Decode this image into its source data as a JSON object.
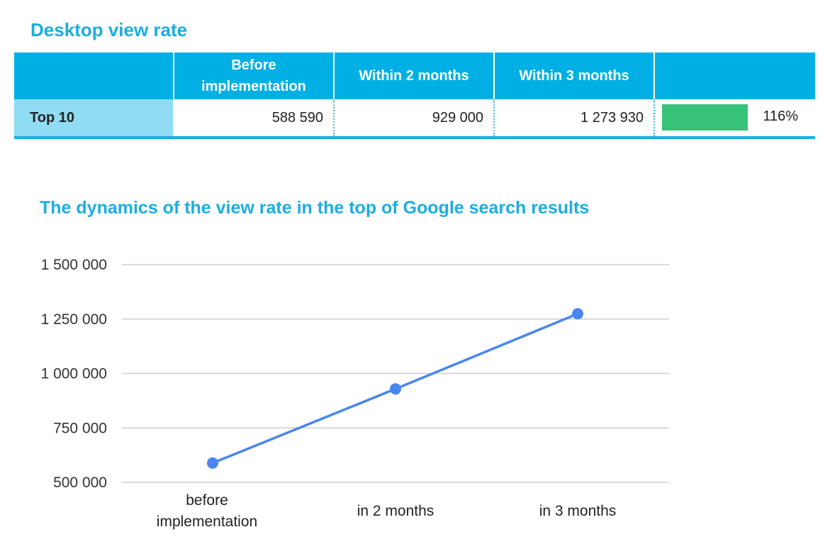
{
  "table": {
    "title": "Desktop view rate",
    "headers": [
      "",
      "Before implementation",
      "Within 2 months",
      "Within 3 months",
      ""
    ],
    "rows": [
      {
        "label": "Top 10",
        "before": "588 590",
        "within2": "929 000",
        "within3": "1 273 930",
        "growth": "116%",
        "growth_value": 1.16
      }
    ],
    "bar_color": "#36c277",
    "header_color": "#00b0e4"
  },
  "chart_data": {
    "type": "line",
    "title": "The dynamics of the view rate in the top of Google search results",
    "categories": [
      "before implementation",
      "in 2 months",
      "in 3 months"
    ],
    "series": [
      {
        "values": [
          588590,
          929000,
          1273930
        ],
        "color": "#4a86f0"
      }
    ],
    "ylim": [
      500000,
      1500000
    ],
    "yticks": [
      500000,
      750000,
      1000000,
      1250000,
      1500000
    ],
    "ytick_labels": [
      "500 000",
      "750 000",
      "1 000 000",
      "1 250 000",
      "1 500 000"
    ],
    "grid": true,
    "xlabel": "",
    "ylabel": ""
  }
}
